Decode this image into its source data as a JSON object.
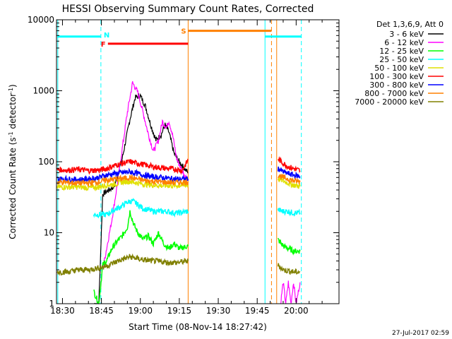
{
  "chart_data": {
    "type": "line",
    "title": "HESSI Observing Summary Count Rates, Corrected",
    "xlabel": "Start Time (08-Nov-14 18:27:42)",
    "ylabel_main": "Corrected Count Rate (s",
    "ylabel_sup1": "-1",
    "ylabel_mid": " detector",
    "ylabel_sup2": "-1",
    "ylabel_end": ")",
    "timestamp": "27-Jul-2017 02:59",
    "legend_header": "Det 1,3,6,9, Att 0",
    "legend_position": "top-right, outside plot",
    "x_unit": "minutes of day (UT)",
    "xlim": [
      1107.7,
      1216.5
    ],
    "ylim": [
      1,
      10000
    ],
    "y_scale": "log",
    "x_ticks": [
      {
        "v": 1110,
        "label": "18:30"
      },
      {
        "v": 1125,
        "label": "18:45"
      },
      {
        "v": 1140,
        "label": "19:00"
      },
      {
        "v": 1155,
        "label": "19:15"
      },
      {
        "v": 1170,
        "label": "19:30"
      },
      {
        "v": 1185,
        "label": "19:45"
      },
      {
        "v": 1200,
        "label": "20:00"
      }
    ],
    "y_ticks": [
      {
        "v": 1,
        "label": "1"
      },
      {
        "v": 10,
        "label": "10"
      },
      {
        "v": 100,
        "label": "100"
      },
      {
        "v": 1000,
        "label": "1000"
      },
      {
        "v": 10000,
        "label": "10000"
      }
    ],
    "series": [
      {
        "name": "3 - 6 keV",
        "color": "#000000",
        "segments": [
          [
            [
              1122.3,
              1
            ],
            [
              1124,
              1
            ],
            [
              1125.5,
              35
            ],
            [
              1127,
              38
            ],
            [
              1130,
              45
            ],
            [
              1133,
              110
            ],
            [
              1136,
              400
            ],
            [
              1138,
              800
            ],
            [
              1140,
              850
            ],
            [
              1142,
              600
            ],
            [
              1144,
              330
            ],
            [
              1146,
              200
            ],
            [
              1148,
              240
            ],
            [
              1149.5,
              330
            ],
            [
              1151,
              260
            ],
            [
              1153,
              130
            ],
            [
              1155,
              100
            ],
            [
              1157,
              80
            ],
            [
              1158.4,
              70
            ]
          ]
        ]
      },
      {
        "name": "6 - 12 keV",
        "color": "#ff00ff",
        "segments": [
          [
            [
              1125.5,
              3
            ],
            [
              1127,
              6
            ],
            [
              1129,
              15
            ],
            [
              1131,
              45
            ],
            [
              1133,
              150
            ],
            [
              1135,
              500
            ],
            [
              1137,
              1300
            ],
            [
              1139,
              950
            ],
            [
              1141,
              500
            ],
            [
              1143,
              250
            ],
            [
              1145,
              140
            ],
            [
              1147,
              200
            ],
            [
              1148.5,
              370
            ],
            [
              1150,
              300
            ],
            [
              1151,
              380
            ],
            [
              1152.5,
              230
            ],
            [
              1154,
              110
            ],
            [
              1156,
              75
            ],
            [
              1158.4,
              55
            ]
          ],
          [
            [
              1194,
              1
            ],
            [
              1195,
              2
            ],
            [
              1196,
              1
            ],
            [
              1197,
              2
            ],
            [
              1198,
              1
            ],
            [
              1199,
              2
            ],
            [
              1200,
              1
            ],
            [
              1201.5,
              2
            ]
          ]
        ]
      },
      {
        "name": "12 - 25 keV",
        "color": "#00ff00",
        "segments": [
          [
            [
              1122,
              1.5
            ],
            [
              1124,
              1
            ],
            [
              1125.5,
              3.5
            ],
            [
              1127,
              4
            ],
            [
              1129,
              6
            ],
            [
              1131,
              7.5
            ],
            [
              1133,
              9
            ],
            [
              1135,
              12
            ],
            [
              1136,
              20
            ],
            [
              1137.5,
              13
            ],
            [
              1139,
              10
            ],
            [
              1141,
              8
            ],
            [
              1143,
              9
            ],
            [
              1145,
              7
            ],
            [
              1147,
              10
            ],
            [
              1149,
              7
            ],
            [
              1151,
              6
            ],
            [
              1153,
              7
            ],
            [
              1155,
              6
            ],
            [
              1158.4,
              6.5
            ]
          ],
          [
            [
              1193,
              8
            ],
            [
              1195,
              6.5
            ],
            [
              1197,
              6
            ],
            [
              1199,
              5.5
            ],
            [
              1201.5,
              5.5
            ]
          ]
        ]
      },
      {
        "name": "25 - 50 keV",
        "color": "#00ffff",
        "segments": [
          [
            [
              1122,
              18
            ],
            [
              1125,
              18
            ],
            [
              1127,
              18
            ],
            [
              1129,
              20
            ],
            [
              1131,
              22
            ],
            [
              1133,
              24
            ],
            [
              1135,
              27
            ],
            [
              1137,
              28
            ],
            [
              1139,
              25
            ],
            [
              1141,
              22
            ],
            [
              1143,
              21
            ],
            [
              1145,
              20
            ],
            [
              1147,
              20
            ],
            [
              1150,
              20
            ],
            [
              1153,
              19
            ],
            [
              1155,
              19
            ],
            [
              1158.4,
              20
            ]
          ],
          [
            [
              1193,
              21
            ],
            [
              1195,
              20
            ],
            [
              1197,
              20
            ],
            [
              1199,
              19
            ],
            [
              1201.5,
              19
            ]
          ]
        ]
      },
      {
        "name": "50 - 100 keV",
        "color": "#e0e000",
        "segments": [
          [
            [
              1108,
              44
            ],
            [
              1112,
              44
            ],
            [
              1116,
              44
            ],
            [
              1120,
              43
            ],
            [
              1124,
              44
            ],
            [
              1127,
              47
            ],
            [
              1130,
              48
            ],
            [
              1133,
              52
            ],
            [
              1136,
              53
            ],
            [
              1139,
              50
            ],
            [
              1142,
              48
            ],
            [
              1145,
              47
            ],
            [
              1148,
              46
            ],
            [
              1151,
              46
            ],
            [
              1154,
              46
            ],
            [
              1158.4,
              47
            ]
          ],
          [
            [
              1193,
              58
            ],
            [
              1195,
              54
            ],
            [
              1197,
              50
            ],
            [
              1199,
              47
            ],
            [
              1201.5,
              45
            ]
          ]
        ]
      },
      {
        "name": "100 - 300 keV",
        "color": "#ff0000",
        "segments": [
          [
            [
              1108,
              78
            ],
            [
              1112,
              76
            ],
            [
              1116,
              78
            ],
            [
              1120,
              75
            ],
            [
              1124,
              76
            ],
            [
              1127,
              80
            ],
            [
              1130,
              88
            ],
            [
              1133,
              95
            ],
            [
              1136,
              100
            ],
            [
              1139,
              95
            ],
            [
              1142,
              90
            ],
            [
              1145,
              85
            ],
            [
              1148,
              82
            ],
            [
              1151,
              80
            ],
            [
              1154,
              78
            ],
            [
              1156,
              75
            ],
            [
              1158.4,
              105
            ]
          ],
          [
            [
              1193,
              110
            ],
            [
              1195,
              95
            ],
            [
              1197,
              85
            ],
            [
              1199,
              80
            ],
            [
              1201.5,
              75
            ]
          ]
        ]
      },
      {
        "name": "300 - 800 keV",
        "color": "#0000ff",
        "segments": [
          [
            [
              1108,
              57
            ],
            [
              1112,
              57
            ],
            [
              1116,
              56
            ],
            [
              1120,
              57
            ],
            [
              1124,
              60
            ],
            [
              1127,
              65
            ],
            [
              1130,
              68
            ],
            [
              1133,
              70
            ],
            [
              1136,
              72
            ],
            [
              1139,
              68
            ],
            [
              1142,
              64
            ],
            [
              1145,
              61
            ],
            [
              1148,
              60
            ],
            [
              1151,
              58
            ],
            [
              1154,
              57
            ],
            [
              1158.4,
              57
            ]
          ],
          [
            [
              1193,
              80
            ],
            [
              1195,
              72
            ],
            [
              1197,
              68
            ],
            [
              1199,
              65
            ],
            [
              1201.5,
              62
            ]
          ]
        ]
      },
      {
        "name": "800 - 7000 keV",
        "color": "#ff8000",
        "segments": [
          [
            [
              1108,
              52
            ],
            [
              1112,
              51
            ],
            [
              1116,
              50
            ],
            [
              1120,
              50
            ],
            [
              1124,
              52
            ],
            [
              1127,
              55
            ],
            [
              1130,
              57
            ],
            [
              1133,
              58
            ],
            [
              1136,
              60
            ],
            [
              1139,
              57
            ],
            [
              1142,
              54
            ],
            [
              1145,
              53
            ],
            [
              1148,
              52
            ],
            [
              1151,
              51
            ],
            [
              1154,
              51
            ],
            [
              1158.4,
              52
            ]
          ],
          [
            [
              1193,
              65
            ],
            [
              1195,
              60
            ],
            [
              1197,
              57
            ],
            [
              1199,
              54
            ],
            [
              1201.5,
              52
            ]
          ]
        ]
      },
      {
        "name": "7000 - 20000 keV",
        "color": "#808000",
        "segments": [
          [
            [
              1108,
              2.8
            ],
            [
              1112,
              2.8
            ],
            [
              1116,
              3
            ],
            [
              1120,
              3
            ],
            [
              1124,
              3.2
            ],
            [
              1127,
              3.4
            ],
            [
              1130,
              3.8
            ],
            [
              1133,
              4.2
            ],
            [
              1136,
              4.6
            ],
            [
              1139,
              4.3
            ],
            [
              1142,
              4.1
            ],
            [
              1145,
              4
            ],
            [
              1148,
              3.9
            ],
            [
              1151,
              3.8
            ],
            [
              1154,
              3.8
            ],
            [
              1158.4,
              4
            ]
          ],
          [
            [
              1193,
              3.5
            ],
            [
              1195,
              3
            ],
            [
              1197,
              2.9
            ],
            [
              1199,
              2.8
            ],
            [
              1201.5,
              2.8
            ]
          ]
        ]
      }
    ],
    "flags": [
      {
        "label": "N",
        "color": "#00ffff",
        "x_start": 1108,
        "x_end": 1124.8,
        "y": 5800,
        "label_side": "right"
      },
      {
        "label": "",
        "color": "#00ffff",
        "x_start": 1188,
        "x_end": 1202,
        "y": 5800,
        "label_side": "none"
      },
      {
        "label": "F",
        "color": "#ff0000",
        "x_start": 1127.5,
        "x_end": 1158.4,
        "y": 4600,
        "label_side": "left"
      },
      {
        "label": "S",
        "color": "#ff8000",
        "x_start": 1158.4,
        "x_end": 1190.5,
        "y": 7000,
        "label_side": "left"
      }
    ],
    "verticals": [
      {
        "x": 1108.2,
        "color": "#00ffff",
        "dashed": false
      },
      {
        "x": 1124.8,
        "color": "#00ffff",
        "dashed": true
      },
      {
        "x": 1158.4,
        "color": "#ff8000",
        "dashed": false
      },
      {
        "x": 1188.0,
        "color": "#00ffff",
        "dashed": false
      },
      {
        "x": 1190.5,
        "color": "#ff8000",
        "dashed": true
      },
      {
        "x": 1192.5,
        "color": "#ff8000",
        "dashed": false
      },
      {
        "x": 1202.0,
        "color": "#00ffff",
        "dashed": true
      }
    ]
  }
}
